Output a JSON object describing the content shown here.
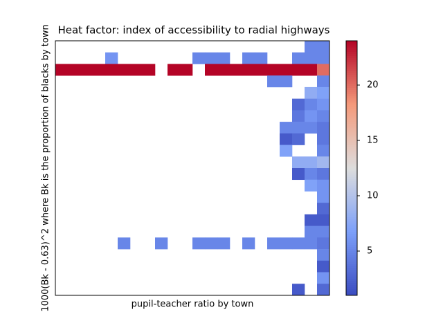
{
  "chart_data": {
    "type": "heatmap",
    "title": "Heat factor: index of accessibility to radial highways",
    "x_label": "pupil-teacher ratio by town",
    "y_label": "1000(Bk - 0.63)^2 where Bk is the proportion of blacks by town",
    "colormap": "coolwarm",
    "clim": [
      1,
      24
    ],
    "cticks": [
      5,
      10,
      15,
      20
    ],
    "z": [
      [
        null,
        null,
        null,
        null,
        null,
        null,
        null,
        null,
        null,
        null,
        null,
        null,
        null,
        null,
        null,
        null,
        null,
        null,
        null,
        null,
        5,
        5
      ],
      [
        null,
        null,
        null,
        null,
        6,
        null,
        null,
        null,
        null,
        null,
        null,
        5,
        5,
        5,
        null,
        5,
        5,
        null,
        null,
        5,
        5,
        5
      ],
      [
        24,
        24,
        24,
        24,
        24,
        24,
        24,
        24,
        null,
        24,
        24,
        null,
        24,
        24,
        24,
        24,
        24,
        24,
        24,
        24,
        24,
        20
      ],
      [
        null,
        null,
        null,
        null,
        null,
        null,
        null,
        null,
        null,
        null,
        null,
        null,
        null,
        null,
        null,
        null,
        null,
        5,
        5,
        null,
        null,
        5
      ],
      [
        null,
        null,
        null,
        null,
        null,
        null,
        null,
        null,
        null,
        null,
        null,
        null,
        null,
        null,
        null,
        null,
        null,
        null,
        null,
        null,
        8,
        7
      ],
      [
        null,
        null,
        null,
        null,
        null,
        null,
        null,
        null,
        null,
        null,
        null,
        null,
        null,
        null,
        null,
        null,
        null,
        null,
        null,
        3,
        5,
        6
      ],
      [
        null,
        null,
        null,
        null,
        null,
        null,
        null,
        null,
        null,
        null,
        null,
        null,
        null,
        null,
        null,
        null,
        null,
        null,
        null,
        4,
        6,
        5
      ],
      [
        null,
        null,
        null,
        null,
        null,
        null,
        null,
        null,
        null,
        null,
        null,
        null,
        null,
        null,
        null,
        null,
        null,
        null,
        5,
        5,
        5,
        4
      ],
      [
        null,
        null,
        null,
        null,
        null,
        null,
        null,
        null,
        null,
        null,
        null,
        null,
        null,
        null,
        null,
        null,
        null,
        null,
        2,
        3,
        null,
        4
      ],
      [
        null,
        null,
        null,
        null,
        null,
        null,
        null,
        null,
        null,
        null,
        null,
        null,
        null,
        null,
        null,
        null,
        null,
        null,
        7,
        null,
        null,
        5
      ],
      [
        null,
        null,
        null,
        null,
        null,
        null,
        null,
        null,
        null,
        null,
        null,
        null,
        null,
        null,
        null,
        null,
        null,
        null,
        null,
        8,
        8,
        9
      ],
      [
        null,
        null,
        null,
        null,
        null,
        null,
        null,
        null,
        null,
        null,
        null,
        null,
        null,
        null,
        null,
        null,
        null,
        null,
        null,
        2,
        5,
        4
      ],
      [
        null,
        null,
        null,
        null,
        null,
        null,
        null,
        null,
        null,
        null,
        null,
        null,
        null,
        null,
        null,
        null,
        null,
        null,
        null,
        null,
        7,
        6
      ],
      [
        null,
        null,
        null,
        null,
        null,
        null,
        null,
        null,
        null,
        null,
        null,
        null,
        null,
        null,
        null,
        null,
        null,
        null,
        null,
        null,
        null,
        6
      ],
      [
        null,
        null,
        null,
        null,
        null,
        null,
        null,
        null,
        null,
        null,
        null,
        null,
        null,
        null,
        null,
        null,
        null,
        null,
        null,
        null,
        null,
        3
      ],
      [
        null,
        null,
        null,
        null,
        null,
        null,
        null,
        null,
        null,
        null,
        null,
        null,
        null,
        null,
        null,
        null,
        null,
        null,
        null,
        null,
        2,
        2
      ],
      [
        null,
        null,
        null,
        null,
        null,
        null,
        null,
        null,
        null,
        null,
        null,
        null,
        null,
        null,
        null,
        null,
        null,
        null,
        null,
        null,
        5,
        5
      ],
      [
        null,
        null,
        null,
        null,
        null,
        5,
        null,
        null,
        5,
        null,
        null,
        5,
        5,
        5,
        null,
        5,
        null,
        5,
        5,
        5,
        5,
        4
      ],
      [
        null,
        null,
        null,
        null,
        null,
        null,
        null,
        null,
        null,
        null,
        null,
        null,
        null,
        null,
        null,
        null,
        null,
        null,
        null,
        null,
        null,
        5
      ],
      [
        null,
        null,
        null,
        null,
        null,
        null,
        null,
        null,
        null,
        null,
        null,
        null,
        null,
        null,
        null,
        null,
        null,
        null,
        null,
        null,
        null,
        2
      ],
      [
        null,
        null,
        null,
        null,
        null,
        null,
        null,
        null,
        null,
        null,
        null,
        null,
        null,
        null,
        null,
        null,
        null,
        null,
        null,
        null,
        null,
        6
      ],
      [
        null,
        null,
        null,
        null,
        null,
        null,
        null,
        null,
        null,
        null,
        null,
        null,
        null,
        null,
        null,
        null,
        null,
        null,
        null,
        2,
        null,
        3
      ]
    ]
  }
}
